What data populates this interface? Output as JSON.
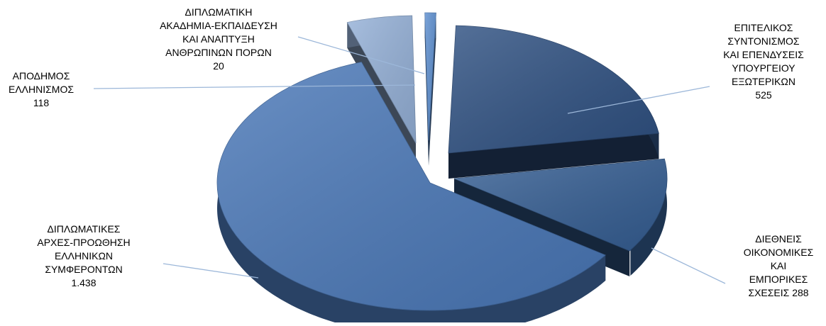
{
  "chart_data": {
    "type": "pie",
    "style": "3d-exploded",
    "title": "",
    "legend": "none",
    "slices": [
      {
        "label_lines": [
          "ΕΠΙΤΕΛΙΚΟΣ",
          "ΣΥΝΤΟΝΙΣΜΟΣ",
          "ΚΑΙ ΕΠΕΝΔΥΣΕΙΣ",
          "ΥΠΟΥΡΓΕΙΟΥ",
          "ΕΞΩΤΕΡΙΚΩΝ",
          "525"
        ],
        "value": 525,
        "color": "#2f5182"
      },
      {
        "label_lines": [
          "ΔΙΕΘΝΕΙΣ",
          "ΟΙΚΟΝΟΜΙΚΕΣ",
          "ΚΑΙ",
          "ΕΜΠΟΡΙΚΕΣ",
          "ΣΧΕΣΕΙΣ  288"
        ],
        "value": 288,
        "color": "#355e93"
      },
      {
        "label_lines": [
          "ΔΙΠΛΩΜΑΤΙΚΕΣ",
          "ΑΡΧΕΣ-ΠΡΟΩΘΗΣΗ",
          "ΕΛΛΗΝΙΚΩΝ",
          "ΣΥΜΦΕΡΟΝΤΩΝ",
          "1.438"
        ],
        "value": 1438,
        "color": "#4a78b8"
      },
      {
        "label_lines": [
          "ΑΠΟΔΗΜΟΣ",
          "ΕΛΛΗΝΙΣΜΟΣ",
          "118"
        ],
        "value": 118,
        "color": "#95b1d8"
      },
      {
        "label_lines": [
          "ΔΙΠΛΩΜΑΤΙΚΗ",
          "ΑΚΑΔΗΜΙΑ-ΕΚΠΑΙΔΕΥΣΗ",
          "ΚΑΙ ΑΝΑΠΤΥΞΗ",
          "ΑΝΘΡΩΠΙΝΩΝ ΠΟΡΩΝ",
          "20"
        ],
        "value": 20,
        "color": "#5d8fd0"
      }
    ]
  }
}
